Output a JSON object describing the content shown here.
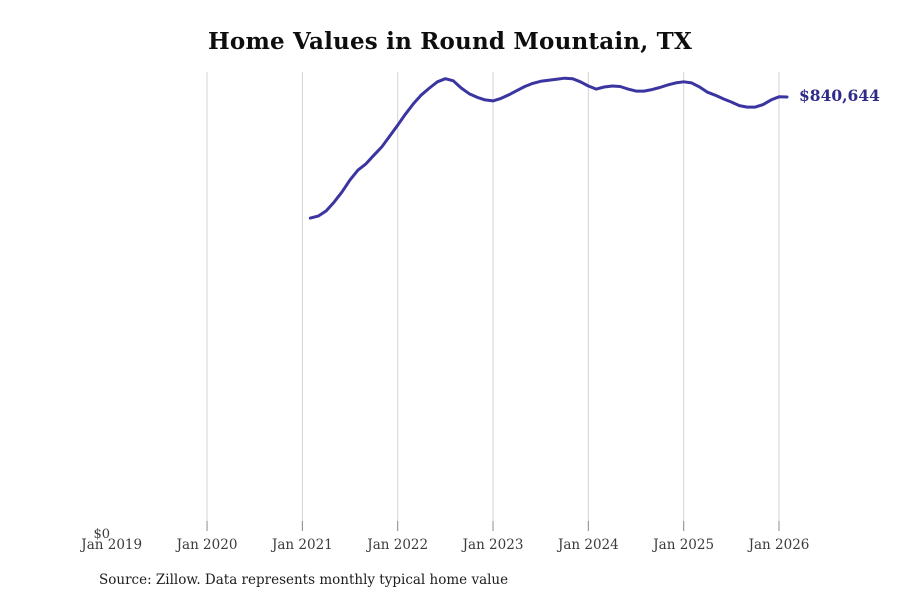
{
  "chart_data": {
    "type": "line",
    "title": "Home Values in Round Mountain, TX",
    "source_note": "Source: Zillow. Data represents monthly typical home value",
    "end_label": "$840,644",
    "end_value": 840644,
    "y_zero_label": "$0",
    "xlabel": "",
    "ylabel": "",
    "ylim": [
      0,
      890000
    ],
    "grid": "vertical-only",
    "legend": "none",
    "line_color": "#3a35a0",
    "end_label_color": "#302b88",
    "grid_color": "#d4d4d4",
    "tick_color": "#8f8f8f",
    "axis_text_color": "#3b3b3b",
    "x_tick_labels": [
      "Jan 2019",
      "Jan 2020",
      "Jan 2021",
      "Jan 2022",
      "Jan 2023",
      "Jan 2024",
      "Jan 2025",
      "Jan 2026"
    ],
    "x": [
      "Feb 2021",
      "Mar 2021",
      "Apr 2021",
      "May 2021",
      "Jun 2021",
      "Jul 2021",
      "Aug 2021",
      "Sep 2021",
      "Oct 2021",
      "Nov 2021",
      "Dec 2021",
      "Jan 2022",
      "Feb 2022",
      "Mar 2022",
      "Apr 2022",
      "May 2022",
      "Jun 2022",
      "Jul 2022",
      "Aug 2022",
      "Sep 2022",
      "Oct 2022",
      "Nov 2022",
      "Dec 2022",
      "Jan 2023",
      "Feb 2023",
      "Mar 2023",
      "Apr 2023",
      "May 2023",
      "Jun 2023",
      "Jul 2023",
      "Aug 2023",
      "Sep 2023",
      "Oct 2023",
      "Nov 2023",
      "Dec 2023",
      "Jan 2024",
      "Feb 2024",
      "Mar 2024",
      "Apr 2024",
      "May 2024",
      "Jun 2024",
      "Jul 2024",
      "Aug 2024",
      "Sep 2024",
      "Oct 2024",
      "Nov 2024",
      "Dec 2024",
      "Jan 2025",
      "Feb 2025",
      "Mar 2025",
      "Apr 2025",
      "May 2025",
      "Jun 2025",
      "Jul 2025",
      "Aug 2025",
      "Sep 2025",
      "Oct 2025",
      "Nov 2025",
      "Dec 2025",
      "Jan 2026",
      "Feb 2026"
    ],
    "values": [
      606000,
      610000,
      620000,
      637000,
      657000,
      680000,
      699000,
      711000,
      728000,
      744000,
      765000,
      786000,
      808000,
      828000,
      845000,
      858000,
      870000,
      876000,
      872000,
      858000,
      847000,
      840000,
      835000,
      833000,
      838000,
      845000,
      853000,
      861000,
      867000,
      871000,
      873000,
      875000,
      877000,
      876000,
      870000,
      862000,
      856000,
      860000,
      862000,
      861000,
      856000,
      852000,
      852000,
      855000,
      859000,
      864000,
      868000,
      870000,
      868000,
      860000,
      850000,
      844000,
      837000,
      831000,
      824000,
      821000,
      821000,
      826000,
      835000,
      841000,
      840644
    ]
  }
}
